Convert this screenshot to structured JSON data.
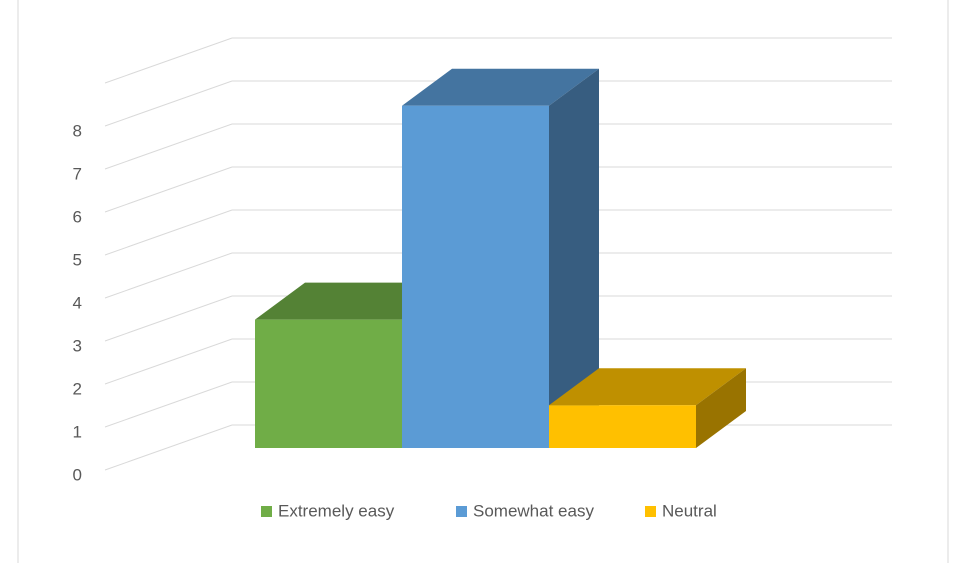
{
  "chart_data": {
    "type": "bar",
    "categories": [
      "Extremely easy",
      "Somewhat easy",
      "Neutral"
    ],
    "values": [
      3,
      8,
      1
    ],
    "colors": [
      "#70ad47",
      "#5b9bd5",
      "#ffc000"
    ],
    "ylim": [
      0,
      9
    ],
    "yticks": [
      0,
      1,
      2,
      3,
      4,
      5,
      6,
      7,
      8
    ],
    "grid": true,
    "legend": "bottom"
  }
}
